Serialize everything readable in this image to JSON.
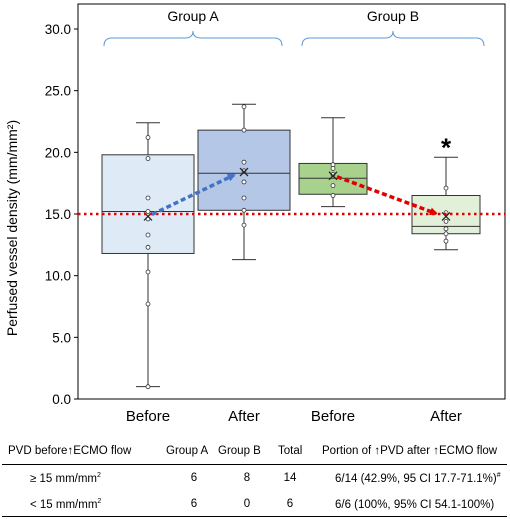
{
  "chart_data": {
    "type": "box",
    "ylabel": "Perfused vessel density (mm/mm²)",
    "ylim": [
      0,
      30
    ],
    "yticks": [
      "0.0",
      "5.0",
      "10.0",
      "15.0",
      "20.0",
      "25.0",
      "30.0"
    ],
    "categories": [
      "Before",
      "After",
      "Before",
      "After"
    ],
    "groups": [
      "Group A",
      "Group B"
    ],
    "reference_line": 15,
    "significance_marker": "*",
    "boxes": [
      {
        "min": 1.0,
        "q1": 11.8,
        "median": 15.2,
        "q3": 19.8,
        "max": 22.4,
        "mean": 14.8,
        "points": [
          21.2,
          19.5,
          16.3,
          15.2,
          14.6,
          13.3,
          12.3,
          10.3,
          7.7,
          1.0
        ]
      },
      {
        "min": 11.3,
        "q1": 15.3,
        "median": 18.3,
        "q3": 21.8,
        "max": 23.9,
        "mean": 18.4,
        "points": [
          23.7,
          21.8,
          19.2,
          18.5,
          17.6,
          16.3,
          15.3,
          14.1
        ]
      },
      {
        "min": 15.6,
        "q1": 16.6,
        "median": 17.9,
        "q3": 19.1,
        "max": 22.8,
        "mean": 18.1,
        "points": [
          19.0,
          18.7,
          18.2,
          17.3,
          16.5
        ]
      },
      {
        "min": 12.1,
        "q1": 13.4,
        "median": 14.0,
        "q3": 16.5,
        "max": 19.6,
        "mean": 14.8,
        "points": [
          17.1,
          15.1,
          14.4,
          13.8,
          13.4,
          12.8
        ]
      }
    ],
    "colors": {
      "box_a_before": "#deebf7",
      "box_a_after": "#b4c7e7",
      "box_b_before": "#a9d18e",
      "box_b_after": "#e2f0d9",
      "brace": "#5b9bd5",
      "arrow_a": "#4472c4",
      "arrow_b": "#e00000",
      "reference": "#e00000"
    }
  },
  "table": {
    "headers": [
      "PVD before↑ECMO flow",
      "Group A",
      "Group B",
      "Total",
      "Portion of ↑PVD after ↑ECMO flow"
    ],
    "rows": [
      {
        "label_main": "≥ 15 mm/mm",
        "label_sup": "2",
        "group_a": "6",
        "group_b": "8",
        "total": "14",
        "portion": "6/14 (42.9%, 95 CI 17.7-71.1%)",
        "portion_sup": "#"
      },
      {
        "label_main": "< 15 mm/mm",
        "label_sup": "2",
        "group_a": "6",
        "group_b": "0",
        "total": "6",
        "portion": "6/6  (100%, 95% CI 54.1-100%)",
        "portion_sup": ""
      }
    ]
  }
}
